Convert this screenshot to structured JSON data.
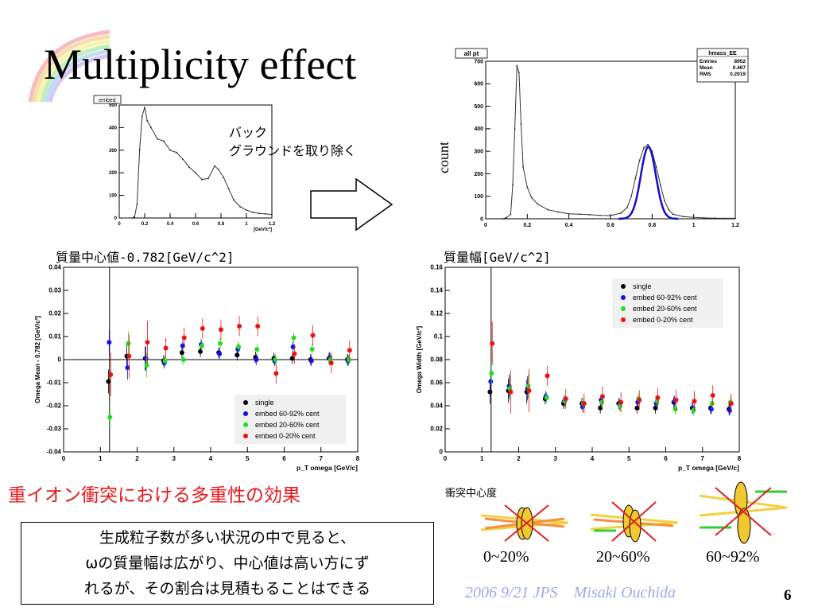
{
  "slide": {
    "title": "Multiplicity effect",
    "note_back_line1": "バック",
    "note_back_line2": "グラウンドを取り除く",
    "count_label": "count",
    "label_mean": "質量中心値-0.782[GeV/c^2]",
    "label_width": "質量幅[GeV/c^2]",
    "red_text": "重イオン衝突における多重性の効果",
    "box_line1": "生成粒子数が多い状況の中で見ると、",
    "box_line2": "ωの質量幅は広がり、中心値は高い方にず",
    "box_line3": "れるが、その割合は見積もることはできる",
    "centrality_title": "衝突中心度",
    "centrality_labels": [
      "0~20%",
      "20~60%",
      "60~92%"
    ],
    "footer": "2006 9/21 JPS　Misaki Ouchida",
    "page_number": "6"
  },
  "chart_data": [
    {
      "type": "line",
      "title": "embed",
      "xlabel": "[GeV/c²]",
      "xlim": [
        0,
        1.2
      ],
      "ylim": [
        0,
        500
      ],
      "xticks": [
        "0",
        "0.2",
        "0.4",
        "0.6",
        "0.8",
        "1",
        "1.2"
      ],
      "yticks": [
        "0",
        "100",
        "200",
        "300",
        "400",
        "500"
      ],
      "x": [
        0.02,
        0.05,
        0.08,
        0.1,
        0.12,
        0.14,
        0.16,
        0.18,
        0.2,
        0.22,
        0.25,
        0.3,
        0.35,
        0.4,
        0.45,
        0.5,
        0.55,
        0.6,
        0.65,
        0.7,
        0.75,
        0.78,
        0.82,
        0.86,
        0.9,
        0.95,
        1.0,
        1.05,
        1.1,
        1.15,
        1.2
      ],
      "y": [
        0,
        0,
        0,
        0,
        5,
        60,
        300,
        450,
        490,
        430,
        400,
        350,
        340,
        300,
        290,
        260,
        225,
        200,
        170,
        175,
        230,
        215,
        180,
        130,
        80,
        50,
        35,
        25,
        20,
        18,
        15
      ]
    },
    {
      "type": "line",
      "title": "all pt",
      "stats_box": {
        "name": "hmass_EE",
        "rows": [
          [
            "Entries",
            "8952"
          ],
          [
            "Mean",
            "0.467"
          ],
          [
            "RMS",
            "0.2919"
          ]
        ]
      },
      "xlim": [
        0,
        1.2
      ],
      "ylim": [
        0,
        700
      ],
      "xticks": [
        "0",
        "0.2",
        "0.4",
        "0.6",
        "0.8",
        "1",
        "1.2"
      ],
      "yticks": [
        "0",
        "100",
        "200",
        "300",
        "400",
        "500",
        "600",
        "700"
      ],
      "x": [
        0.08,
        0.1,
        0.12,
        0.13,
        0.14,
        0.15,
        0.16,
        0.17,
        0.18,
        0.2,
        0.22,
        0.25,
        0.3,
        0.35,
        0.4,
        0.45,
        0.5,
        0.55,
        0.6,
        0.65,
        0.68,
        0.7,
        0.72,
        0.74,
        0.76,
        0.78,
        0.8,
        0.82,
        0.84,
        0.86,
        0.88,
        0.9,
        0.95,
        1.0,
        1.05,
        1.1,
        1.15,
        1.2
      ],
      "y": [
        0,
        5,
        20,
        150,
        400,
        680,
        650,
        420,
        230,
        140,
        95,
        65,
        40,
        30,
        22,
        20,
        18,
        15,
        14,
        25,
        50,
        100,
        180,
        260,
        315,
        330,
        300,
        230,
        150,
        80,
        40,
        20,
        10,
        6,
        4,
        3,
        2,
        2
      ],
      "fit": {
        "mean": 0.782,
        "sigma": 0.036,
        "amplitude": 320
      }
    },
    {
      "type": "scatter",
      "xlabel": "p_T omega [GeV/c]",
      "ylabel": "Omega Mean - 0.782 [GeV/c²]",
      "xlim": [
        0,
        8
      ],
      "ylim": [
        -0.04,
        0.04
      ],
      "xticks": [
        "0",
        "1",
        "2",
        "3",
        "4",
        "5",
        "6",
        "7",
        "8"
      ],
      "yticks": [
        "-0.04",
        "-0.03",
        "-0.02",
        "-0.01",
        "0",
        "0.01",
        "0.02",
        "0.03",
        "0.04"
      ],
      "legend": "lower-right",
      "x": [
        1.25,
        1.75,
        2.25,
        2.75,
        3.25,
        3.75,
        4.25,
        4.75,
        5.25,
        5.75,
        6.25,
        6.75,
        7.25,
        7.75
      ],
      "series": [
        {
          "name": "single",
          "color": "#000000",
          "values": [
            -0.0095,
            0.0015,
            0.0005,
            -0.0005,
            0.003,
            0.0035,
            0.003,
            0.002,
            0.001,
            0.0005,
            0.0005,
            0.0,
            0.0005,
            0.0
          ]
        },
        {
          "name": "embed 60-92% cent",
          "color": "#1010ee",
          "values": [
            0.0075,
            -0.0035,
            0.0005,
            -0.0015,
            0.006,
            0.0065,
            0.0025,
            0.0045,
            0.0,
            -0.0005,
            0.0055,
            -0.0005,
            0.001,
            -0.0005
          ]
        },
        {
          "name": "embed 20-60% cent",
          "color": "#22dd22",
          "values": [
            -0.025,
            0.007,
            -0.0025,
            -0.0005,
            0.0,
            0.006,
            0.007,
            0.0055,
            0.0045,
            0.0,
            0.0095,
            0.0045,
            0.0,
            0.0
          ]
        },
        {
          "name": "embed 0-20% cent",
          "color": "#ee1111",
          "values": [
            -0.0065,
            0.0015,
            0.0075,
            0.005,
            0.0095,
            0.0135,
            0.013,
            0.0145,
            0.0145,
            -0.006,
            0.0025,
            0.0105,
            -0.0015,
            0.004
          ]
        }
      ]
    },
    {
      "type": "scatter",
      "xlabel": "p_T omega [GeV/c]",
      "ylabel": "Omega Width [GeV/c²]",
      "xlim": [
        0,
        8
      ],
      "ylim": [
        0,
        0.16
      ],
      "xticks": [
        "0",
        "1",
        "2",
        "3",
        "4",
        "5",
        "6",
        "7",
        "8"
      ],
      "yticks": [
        "0",
        "0.02",
        "0.04",
        "0.06",
        "0.08",
        "0.1",
        "0.12",
        "0.14",
        "0.16"
      ],
      "legend": "top-right",
      "x": [
        1.25,
        1.75,
        2.25,
        2.75,
        3.25,
        3.75,
        4.25,
        4.75,
        5.25,
        5.75,
        6.25,
        6.75,
        7.25,
        7.75
      ],
      "series": [
        {
          "name": "single",
          "color": "#000000",
          "values": [
            0.052,
            0.053,
            0.052,
            0.046,
            0.042,
            0.042,
            0.038,
            0.042,
            0.038,
            0.038,
            0.043,
            0.038,
            0.038,
            0.037
          ]
        },
        {
          "name": "embed 60-92% cent",
          "color": "#1010ee",
          "values": [
            0.061,
            0.057,
            0.055,
            0.048,
            0.044,
            0.039,
            0.045,
            0.041,
            0.043,
            0.042,
            0.044,
            0.038,
            0.037,
            0.036
          ]
        },
        {
          "name": "embed 20-60% cent",
          "color": "#22dd22",
          "values": [
            0.068,
            0.055,
            0.057,
            0.047,
            0.044,
            0.042,
            0.043,
            0.04,
            0.046,
            0.044,
            0.037,
            0.036,
            0.042,
            0.043
          ]
        },
        {
          "name": "embed 0-20% cent",
          "color": "#ee1111",
          "values": [
            0.094,
            0.052,
            0.053,
            0.066,
            0.046,
            0.042,
            0.048,
            0.043,
            0.045,
            0.047,
            0.045,
            0.044,
            0.049,
            0.042
          ]
        }
      ]
    }
  ]
}
